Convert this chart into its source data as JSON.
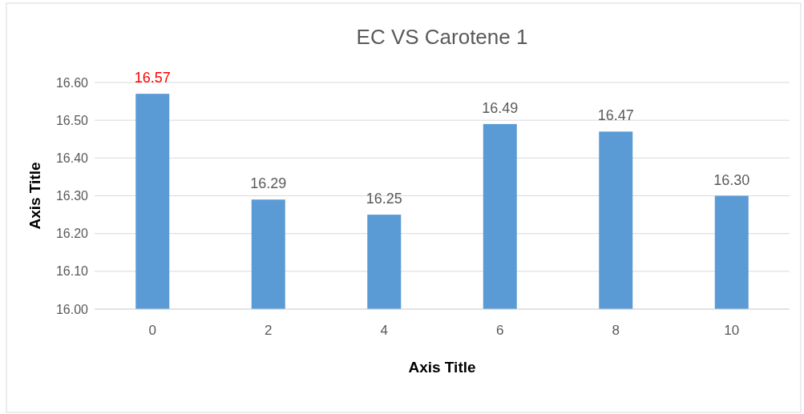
{
  "chart_data": {
    "type": "bar",
    "title": "EC VS Carotene 1",
    "xlabel": "Axis Title",
    "ylabel": "Axis Title",
    "categories": [
      "0",
      "2",
      "4",
      "6",
      "8",
      "10"
    ],
    "series": [
      {
        "color": "#5b9bd5",
        "values": [
          16.57,
          16.29,
          16.25,
          16.49,
          16.47,
          16.3
        ],
        "value_labels": [
          "16.57",
          "16.29",
          "16.25",
          "16.49",
          "16.47",
          "16.30"
        ]
      }
    ],
    "ylim": [
      16.0,
      16.6
    ],
    "yticks": [
      {
        "value": 16.0,
        "label": "16.00"
      },
      {
        "value": 16.1,
        "label": "16.10"
      },
      {
        "value": 16.2,
        "label": "16.20"
      },
      {
        "value": 16.3,
        "label": "16.30"
      },
      {
        "value": 16.4,
        "label": "16.40"
      },
      {
        "value": 16.5,
        "label": "16.50"
      },
      {
        "value": 16.6,
        "label": "16.60"
      }
    ],
    "grid": "y"
  }
}
